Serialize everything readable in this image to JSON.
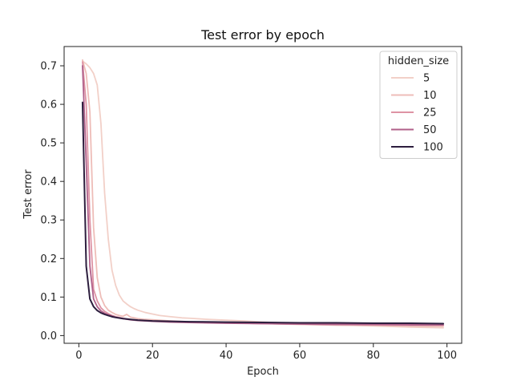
{
  "chart_data": {
    "type": "line",
    "title": "Test error by epoch",
    "xlabel": "Epoch",
    "ylabel": "Test error",
    "xlim": [
      -4,
      104
    ],
    "ylim": [
      -0.02,
      0.75
    ],
    "xticks": [
      0,
      20,
      40,
      60,
      80,
      100
    ],
    "yticks": [
      0.0,
      0.1,
      0.2,
      0.3,
      0.4,
      0.5,
      0.6,
      0.7
    ],
    "xtick_labels": [
      "0",
      "20",
      "40",
      "60",
      "80",
      "100"
    ],
    "ytick_labels": [
      "0.0",
      "0.1",
      "0.2",
      "0.3",
      "0.4",
      "0.5",
      "0.6",
      "0.7"
    ],
    "grid": false,
    "legend": {
      "title": "hidden_size",
      "placement": "top-right"
    },
    "series": [
      {
        "name": "5",
        "color": "#f2d0c8",
        "x": [
          1,
          2,
          3,
          4,
          5,
          6,
          7,
          8,
          9,
          10,
          11,
          12,
          13,
          14,
          15,
          16,
          18,
          20,
          22,
          25,
          28,
          30,
          35,
          40,
          45,
          50,
          60,
          70,
          80,
          90,
          99
        ],
        "y": [
          0.712,
          0.705,
          0.695,
          0.68,
          0.65,
          0.55,
          0.37,
          0.25,
          0.17,
          0.13,
          0.105,
          0.09,
          0.082,
          0.075,
          0.07,
          0.066,
          0.06,
          0.056,
          0.052,
          0.049,
          0.046,
          0.045,
          0.042,
          0.04,
          0.038,
          0.035,
          0.031,
          0.028,
          0.025,
          0.022,
          0.02
        ]
      },
      {
        "name": "10",
        "color": "#eebdb8",
        "x": [
          1,
          2,
          3,
          4,
          5,
          6,
          7,
          8,
          9,
          10,
          11,
          12,
          13,
          14,
          15,
          16,
          18,
          20,
          25,
          30,
          40,
          50,
          60,
          70,
          80,
          90,
          99
        ],
        "y": [
          0.715,
          0.68,
          0.58,
          0.28,
          0.15,
          0.1,
          0.078,
          0.066,
          0.06,
          0.055,
          0.052,
          0.05,
          0.055,
          0.048,
          0.046,
          0.044,
          0.042,
          0.041,
          0.038,
          0.036,
          0.033,
          0.031,
          0.029,
          0.027,
          0.026,
          0.025,
          0.024
        ]
      },
      {
        "name": "25",
        "color": "#de93a4",
        "x": [
          1,
          2,
          3,
          4,
          5,
          6,
          7,
          8,
          9,
          10,
          12,
          14,
          16,
          18,
          20,
          25,
          30,
          40,
          50,
          60,
          70,
          80,
          90,
          99
        ],
        "y": [
          0.71,
          0.6,
          0.3,
          0.12,
          0.09,
          0.072,
          0.063,
          0.057,
          0.052,
          0.049,
          0.045,
          0.042,
          0.04,
          0.039,
          0.038,
          0.036,
          0.035,
          0.033,
          0.031,
          0.03,
          0.029,
          0.028,
          0.027,
          0.027
        ]
      },
      {
        "name": "50",
        "color": "#b0608a",
        "x": [
          1,
          2,
          3,
          4,
          5,
          6,
          7,
          8,
          9,
          10,
          12,
          14,
          16,
          18,
          20,
          25,
          30,
          40,
          50,
          60,
          70,
          80,
          90,
          99
        ],
        "y": [
          0.7,
          0.45,
          0.18,
          0.095,
          0.075,
          0.064,
          0.058,
          0.054,
          0.051,
          0.048,
          0.044,
          0.041,
          0.039,
          0.038,
          0.037,
          0.035,
          0.034,
          0.032,
          0.031,
          0.03,
          0.029,
          0.029,
          0.028,
          0.028
        ]
      },
      {
        "name": "100",
        "color": "#2d1e3e",
        "x": [
          1,
          2,
          3,
          4,
          5,
          6,
          7,
          8,
          9,
          10,
          12,
          14,
          16,
          18,
          20,
          25,
          30,
          40,
          50,
          60,
          70,
          80,
          90,
          99
        ],
        "y": [
          0.605,
          0.18,
          0.095,
          0.075,
          0.065,
          0.059,
          0.055,
          0.052,
          0.049,
          0.047,
          0.044,
          0.042,
          0.04,
          0.039,
          0.038,
          0.037,
          0.036,
          0.035,
          0.034,
          0.033,
          0.033,
          0.032,
          0.032,
          0.031
        ]
      }
    ]
  }
}
